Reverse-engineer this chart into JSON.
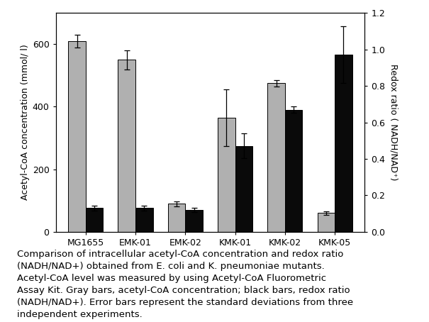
{
  "categories": [
    "MG1655",
    "EMK-01",
    "EMK-02",
    "KMK-01",
    "KMK-02",
    "KMK-05"
  ],
  "gray_values": [
    610,
    550,
    90,
    365,
    475,
    60
  ],
  "black_values_redox": [
    0.13,
    0.13,
    0.12,
    0.47,
    0.67,
    0.97
  ],
  "gray_errors": [
    20,
    30,
    8,
    90,
    10,
    5
  ],
  "black_errors_redox": [
    0.014,
    0.014,
    0.01,
    0.068,
    0.017,
    0.155
  ],
  "left_ylim": [
    0,
    700
  ],
  "left_yticks": [
    0,
    200,
    400,
    600
  ],
  "right_ylim": [
    0.0,
    1.2
  ],
  "right_yticks": [
    0.0,
    0.2,
    0.4,
    0.6,
    0.8,
    1.0,
    1.2
  ],
  "left_ylabel": "Acetyl-CoA concentration (mmol/ l)",
  "right_ylabel": "Redox ratio ( NADH/NAD⁺)",
  "bar_width": 0.35,
  "gray_color": "#b0b0b0",
  "black_color": "#0a0a0a",
  "caption_line1": "Comparison of intracellular acetyl-CoA concentration and redox ratio",
  "caption_line2": "(NADH/NAD+) obtained from E. coli and K. pneumoniae mutants.",
  "caption_line3": "Acetyl-CoA level was measured by using Acetyl-CoA Fluorometric",
  "caption_line4": "Assay Kit. Gray bars, acetyl-CoA concentration; black bars, redox ratio",
  "caption_line5": "(NADH/NAD+). Error bars represent the standard deviations from three",
  "caption_line6": "independent experiments."
}
